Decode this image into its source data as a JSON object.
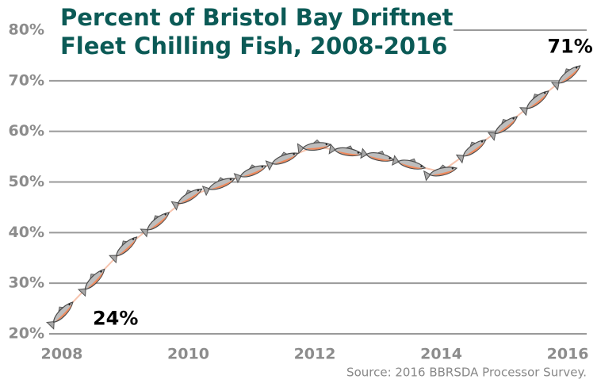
{
  "chart_data": {
    "type": "fish-line",
    "title": [
      "Percent of Bristol Bay Driftnet",
      "Fleet Chilling Fish, 2008-2016"
    ],
    "source": "Source: 2016 BBRSDA Processor Survey.",
    "x": [
      2008,
      2009,
      2010,
      2011,
      2012,
      2013,
      2014,
      2015,
      2016
    ],
    "values": [
      24,
      37,
      47,
      52,
      57,
      55,
      52,
      61,
      71
    ],
    "value_labels": [
      "24%",
      null,
      null,
      null,
      null,
      null,
      null,
      null,
      "71%"
    ],
    "xlim": [
      2007.8,
      2016.3
    ],
    "xticks": [
      2008,
      2010,
      2012,
      2014,
      2016
    ],
    "ylim": [
      20,
      80
    ],
    "yticks": [
      {
        "value": 20,
        "label": "20%"
      },
      {
        "value": 30,
        "label": "30%"
      },
      {
        "value": 40,
        "label": "40%"
      },
      {
        "value": 50,
        "label": "50%"
      },
      {
        "value": 60,
        "label": "60%"
      },
      {
        "value": 70,
        "label": "70%"
      },
      {
        "value": 80,
        "label": "80%"
      }
    ],
    "grid": true,
    "color": "#f08a5d"
  }
}
